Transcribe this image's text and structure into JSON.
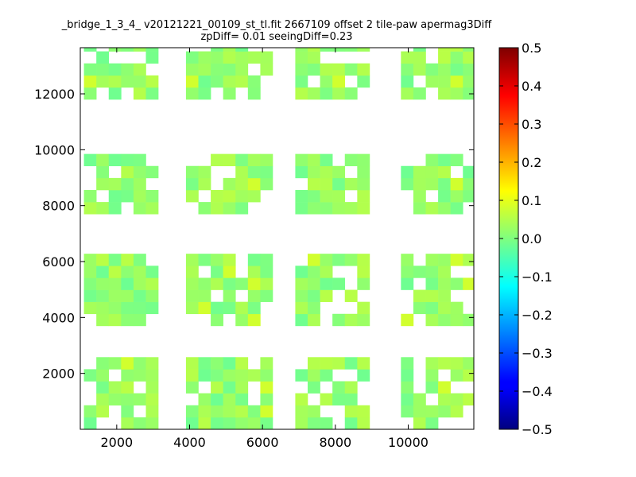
{
  "chart_data": {
    "type": "heatmap",
    "title": "_bridge_1_3_4_ v20121221_00109_st_tl.fit 2667109 offset 2 tile-paw apermag3Diff",
    "subtitle": "zpDiff= 0.01 seeingDiff=0.23",
    "xlim": [
      1000,
      11800
    ],
    "ylim": [
      0,
      13650
    ],
    "x_ticks": [
      "2000",
      "4000",
      "6000",
      "8000",
      "10000"
    ],
    "x_tick_values": [
      2000,
      4000,
      6000,
      8000,
      10000
    ],
    "y_ticks": [
      "2000",
      "4000",
      "6000",
      "8000",
      "10000",
      "12000"
    ],
    "y_tick_values": [
      2000,
      4000,
      6000,
      8000,
      10000,
      12000
    ],
    "cell_width": 340,
    "cell_height": 430,
    "grid_cols": 29,
    "grid_rows": 32,
    "colorbar": {
      "min": -0.5,
      "max": 0.5,
      "ticks": [
        "0.5",
        "0.4",
        "0.3",
        "0.2",
        "0.1",
        "0.0",
        "−0.1",
        "−0.2",
        "−0.3",
        "−0.4",
        "−0.5"
      ],
      "tick_values": [
        0.5,
        0.4,
        0.3,
        0.2,
        0.1,
        0.0,
        -0.1,
        -0.2,
        -0.3,
        -0.4,
        -0.5
      ],
      "colormap": "jet"
    },
    "cell_rows": [
      {
        "row": 0,
        "cols": [
          0,
          1,
          2,
          3,
          4,
          5,
          6,
          10,
          11,
          12,
          13,
          14,
          15,
          16,
          17,
          20,
          21,
          22,
          23,
          24,
          25,
          26,
          27,
          28,
          31
        ]
      },
      {
        "row": 1,
        "cols": [
          0,
          2,
          3,
          4,
          5,
          11,
          12,
          13,
          14,
          15,
          16,
          17,
          20,
          21,
          22,
          23,
          24,
          25,
          26,
          30,
          31
        ]
      },
      {
        "row": 2,
        "cols": [
          0,
          2,
          3,
          4,
          5,
          11,
          12,
          13,
          14,
          15,
          16,
          17,
          20,
          21,
          22,
          23,
          24,
          25,
          26,
          30,
          31
        ]
      },
      {
        "row": 3,
        "cols": [
          0,
          1,
          2,
          3,
          4,
          5,
          11,
          12,
          13,
          14,
          15,
          16,
          17,
          20,
          21,
          22,
          23,
          24,
          25,
          26,
          30,
          31
        ]
      },
      {
        "row": 4,
        "cols": [
          0,
          1,
          2,
          3,
          4,
          5,
          11,
          12,
          13,
          14,
          15,
          16,
          17,
          20,
          21,
          22,
          23,
          24,
          25,
          26,
          30,
          31
        ]
      }
    ],
    "cells": [
      {
        "x": 1400,
        "y": 13400,
        "v": 0.03
      },
      {
        "x": 2800,
        "y": 13400,
        "v": 0.02
      },
      {
        "x": 3100,
        "y": 13400,
        "v": 0.03
      },
      {
        "x": 4800,
        "y": 13400,
        "v": 0.0
      },
      {
        "x": 5100,
        "y": 13400,
        "v": -0.01
      },
      {
        "x": 5400,
        "y": 13400,
        "v": 0.0
      },
      {
        "x": 5700,
        "y": 13400,
        "v": -0.02
      },
      {
        "x": 6000,
        "y": 13400,
        "v": 0.0
      },
      {
        "x": 7100,
        "y": 13400,
        "v": 0.07
      },
      {
        "x": 7400,
        "y": 13400,
        "v": 0.01
      },
      {
        "x": 7700,
        "y": 13400,
        "v": 0.0
      },
      {
        "x": 8000,
        "y": 13400,
        "v": 0.0
      },
      {
        "x": 8300,
        "y": 13400,
        "v": 0.0
      },
      {
        "x": 8600,
        "y": 13400,
        "v": 0.01
      },
      {
        "x": 10100,
        "y": 13400,
        "v": 0.04
      },
      {
        "x": 10700,
        "y": 13400,
        "v": -0.01
      },
      {
        "x": 11000,
        "y": 13400,
        "v": 0.01
      },
      {
        "x": 11300,
        "y": 13400,
        "v": 0.0
      },
      {
        "x": 11600,
        "y": 13400,
        "v": 0.0
      }
    ]
  }
}
